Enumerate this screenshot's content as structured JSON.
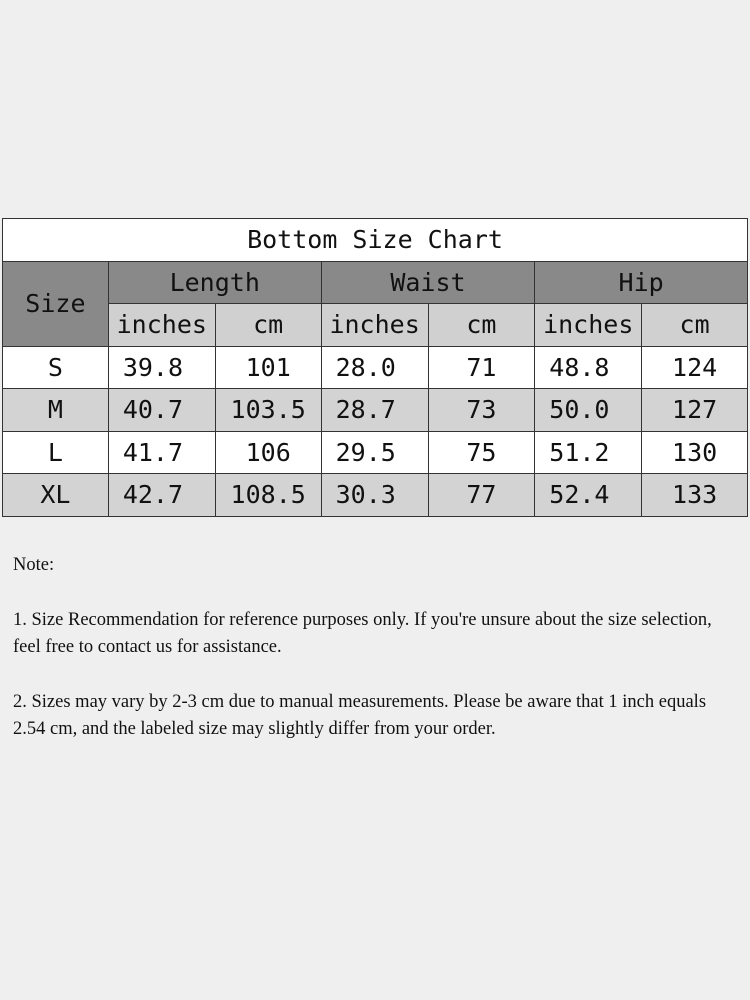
{
  "title": "Bottom Size Chart",
  "headers": {
    "size": "Size",
    "groups": [
      "Length",
      "Waist",
      "Hip"
    ],
    "units": [
      "inches",
      "cm",
      "inches",
      "cm",
      "inches",
      "cm"
    ]
  },
  "rows": [
    [
      "S",
      "39.8",
      "101",
      "28.0",
      "71",
      "48.8",
      "124"
    ],
    [
      "M",
      "40.7",
      "103.5",
      "28.7",
      "73",
      "50.0",
      "127"
    ],
    [
      "L",
      "41.7",
      "106",
      "29.5",
      "75",
      "51.2",
      "130"
    ],
    [
      "XL",
      "42.7",
      "108.5",
      "30.3",
      "77",
      "52.4",
      "133"
    ]
  ],
  "notes": {
    "heading": "Note:",
    "items": [
      "1. Size Recommendation for reference purposes only. If you're unsure about the size selection, feel free to contact us for assistance.",
      "2. Sizes may vary by 2-3 cm due to manual measurements. Please be aware that 1 inch equals 2.54 cm, and the labeled size may slightly differ from your order."
    ]
  },
  "colors": {
    "header": "#898989",
    "subheader": "#d0d0d0",
    "stripe": "#d3d3d3",
    "background": "#efefef"
  }
}
